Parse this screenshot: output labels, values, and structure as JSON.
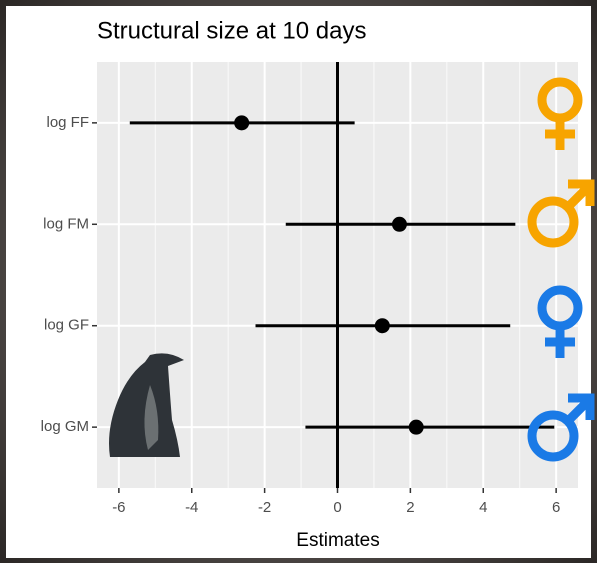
{
  "chart_data": {
    "type": "forest",
    "title": "Structural size at 10 days",
    "x_label": "Estimates",
    "categories": [
      "log FF",
      "log FM",
      "log GF",
      "log GM"
    ],
    "values": [
      -2.63,
      1.7,
      1.23,
      2.16
    ],
    "lower": [
      -5.7,
      -1.42,
      -2.25,
      -0.88
    ],
    "upper": [
      0.47,
      4.88,
      4.74,
      5.95
    ],
    "color": "#000000",
    "xlim": [
      -6.6,
      6.6
    ],
    "xticks": [
      -6,
      -4,
      -2,
      0,
      2,
      4,
      6
    ],
    "vline": 0,
    "grid": true
  }
}
